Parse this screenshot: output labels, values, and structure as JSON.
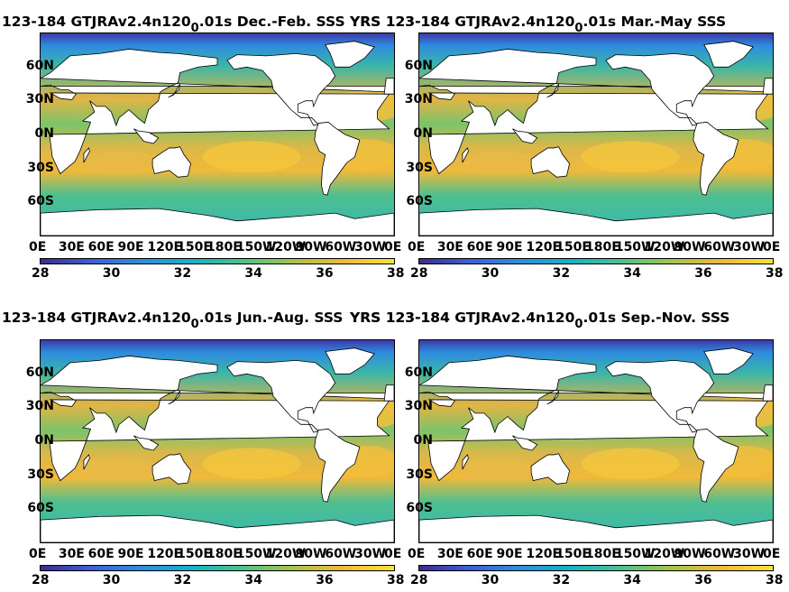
{
  "chart_data": [
    {
      "type": "heatmap",
      "title_main": "123-184 GTJRAv2.4n120",
      "title_sub": "0",
      "title_tail": ".01s Dec.-Feb. SSS",
      "title_overlap": "YRS 123-184",
      "yticks": [
        "60N",
        "30N",
        "0N",
        "30S",
        "60S"
      ],
      "xticks": [
        "0E",
        "30E",
        "60E",
        "90E",
        "120E",
        "150E",
        "180E",
        "150W",
        "120W",
        "90W",
        "60W",
        "30W",
        "0E"
      ],
      "colorbar": {
        "ticks": [
          "28",
          "30",
          "32",
          "34",
          "36",
          "38"
        ],
        "clim": [
          28,
          38
        ]
      }
    },
    {
      "type": "heatmap",
      "title_main": "YRS 123-184 GTJRAv2.4n120",
      "title_sub": "0",
      "title_tail": ".01s Mar.-May SSS",
      "yticks": [
        "60N",
        "30N",
        "0N",
        "30S",
        "60S"
      ],
      "xticks": [
        "0E",
        "30E",
        "60E",
        "90E",
        "120E",
        "150E",
        "180E",
        "150W",
        "120W",
        "90W",
        "60W",
        "30W",
        "0E"
      ],
      "colorbar": {
        "ticks": [
          "28",
          "30",
          "32",
          "34",
          "36",
          "38"
        ],
        "clim": [
          28,
          38
        ]
      }
    },
    {
      "type": "heatmap",
      "title_main": "123-184 GTJRAv2.4n120",
      "title_sub": "0",
      "title_tail": ".01s Jun.-Aug. SSS",
      "title_overlap": "YRS 123-184",
      "yticks": [
        "60N",
        "30N",
        "0N",
        "30S",
        "60S"
      ],
      "xticks": [
        "0E",
        "30E",
        "60E",
        "90E",
        "120E",
        "150E",
        "180E",
        "150W",
        "120W",
        "90W",
        "60W",
        "30W",
        "0E"
      ],
      "colorbar": {
        "ticks": [
          "28",
          "30",
          "32",
          "34",
          "36",
          "38"
        ],
        "clim": [
          28,
          38
        ]
      }
    },
    {
      "type": "heatmap",
      "title_main": "YRS 123-184 GTJRAv2.4n120",
      "title_sub": "0",
      "title_tail": ".01s Sep.-Nov. SSS",
      "yticks": [
        "60N",
        "30N",
        "0N",
        "30S",
        "60S"
      ],
      "xticks": [
        "0E",
        "30E",
        "60E",
        "90E",
        "120E",
        "150E",
        "180E",
        "150W",
        "120W",
        "90W",
        "60W",
        "30W",
        "0E"
      ],
      "colorbar": {
        "ticks": [
          "28",
          "30",
          "32",
          "34",
          "36",
          "38"
        ],
        "clim": [
          28,
          38
        ]
      }
    }
  ],
  "colors": {
    "colormap": [
      "#3b2c8f",
      "#3e5fd6",
      "#2e8ee0",
      "#15b3c5",
      "#4fc18c",
      "#a6c34a",
      "#f0b93a",
      "#f9e23a"
    ],
    "land": "#ffffff"
  }
}
